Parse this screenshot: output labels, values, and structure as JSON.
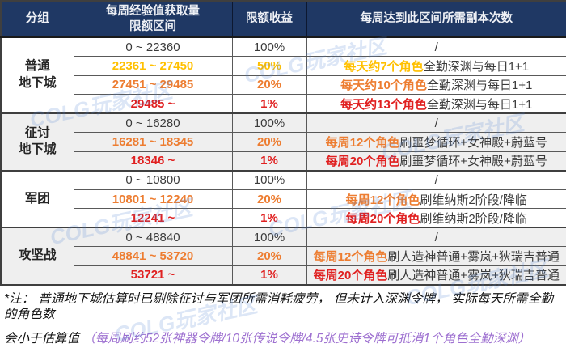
{
  "colors": {
    "header_bg": "#1f3864",
    "header_text": "#eef0f5",
    "yellow": "#ffc000",
    "orange": "#ed7d31",
    "red": "#e02020",
    "purple": "#9d6fd0",
    "border": "#595959"
  },
  "watermark": {
    "text": "COLG玩家社区"
  },
  "table": {
    "headers": {
      "group": "分组",
      "range_line1": "每周经验值获取量",
      "range_line2": "限额区间",
      "income": "限额收益",
      "runs": "每周达到此区间所需副本次数"
    },
    "groups": [
      {
        "name": "普通\n地下城",
        "rows": [
          {
            "range": "0 ~ 22360",
            "income": "100%",
            "runs_prefix": "",
            "runs_rest": "/"
          },
          {
            "range": "22361 ~ 27450",
            "income": "50%",
            "runs_prefix": "每天约7个角色",
            "runs_rest": "全勤深渊与每日1+1"
          },
          {
            "range": "27451 ~ 29485",
            "income": "20%",
            "runs_prefix": "每天约10个角色",
            "runs_rest": "全勤深渊与每日1+1"
          },
          {
            "range": "29485 ~",
            "income": "1%",
            "runs_prefix": "每天约13个角色",
            "runs_rest": "全勤深渊与每日1+1"
          }
        ]
      },
      {
        "name": "征讨\n地下城",
        "rows": [
          {
            "range": "0 ~ 16280",
            "income": "100%",
            "runs_prefix": "",
            "runs_rest": "/"
          },
          {
            "range": "16281 ~ 18345",
            "income": "20%",
            "runs_prefix": "每周12个角色",
            "runs_rest": "刷噩梦循环+女神殿+蔚蓝号"
          },
          {
            "range": "18346 ~",
            "income": "1%",
            "runs_prefix": "每周20个角色",
            "runs_rest": "刷噩梦循环+女神殿+蔚蓝号"
          }
        ]
      },
      {
        "name": "军团",
        "rows": [
          {
            "range": "0 ~ 10800",
            "income": "100%",
            "runs_prefix": "",
            "runs_rest": "/"
          },
          {
            "range": "10801 ~ 12240",
            "income": "20%",
            "runs_prefix": "每周12个角色",
            "runs_rest": "刷维纳斯2阶段/降临"
          },
          {
            "range": "12241 ~",
            "income": "1%",
            "runs_prefix": "每周20个角色",
            "runs_rest": "刷维纳斯2阶段/降临"
          }
        ]
      },
      {
        "name": "攻坚战",
        "rows": [
          {
            "range": "0 ~ 48840",
            "income": "100%",
            "runs_prefix": "",
            "runs_rest": "/"
          },
          {
            "range": "48841 ~ 53720",
            "income": "20%",
            "runs_prefix": "每周12个角色",
            "runs_rest": "刷人造神普通+雾岚+狄瑞吉普通"
          },
          {
            "range": "53721 ~",
            "income": "1%",
            "runs_prefix": "每周20个角色",
            "runs_rest": "刷人造神普通+雾岚+狄瑞吉普通"
          }
        ]
      }
    ]
  },
  "footnote": {
    "line1": "*注：  普通地下城估算时已剔除征讨与军团所需消耗疲劳，  但未计入深渊令牌，  实际每天所需全勤的角色数",
    "line2_black": "会小于估算值  ",
    "line2_purple": "（每周刷约52张神器令牌/10张传说令牌/4.5张史诗令牌可抵消1个角色全勤深渊）"
  }
}
